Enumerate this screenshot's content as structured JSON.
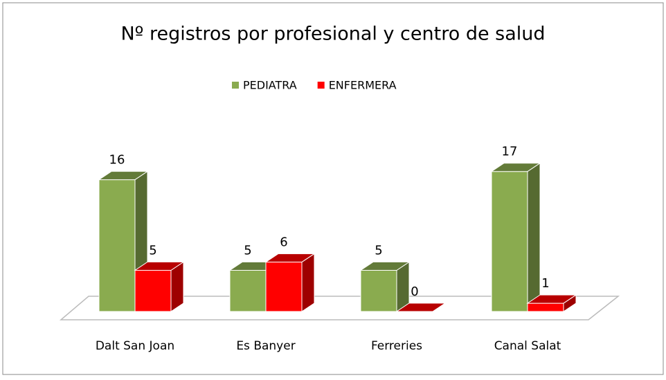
{
  "chart_data": {
    "type": "bar3d",
    "title": "Nº registros por profesional y centro de salud",
    "categories": [
      "Dalt San Joan",
      "Es Banyer",
      "Ferreries",
      "Canal Salat"
    ],
    "series": [
      {
        "name": "PEDIATRA",
        "color": "#8aab4f",
        "values": [
          16,
          5,
          5,
          17
        ]
      },
      {
        "name": "ENFERMERA",
        "color": "#ff0000",
        "values": [
          5,
          6,
          0,
          1
        ]
      }
    ]
  }
}
